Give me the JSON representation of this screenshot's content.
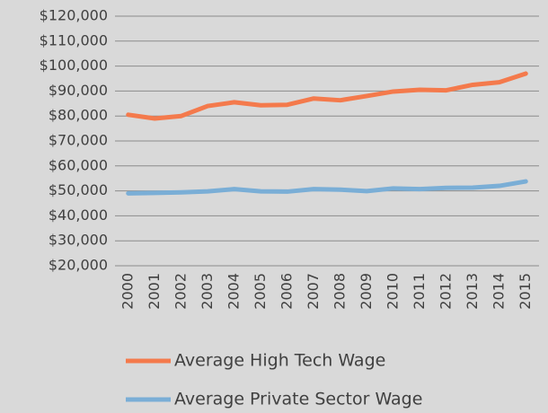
{
  "chart_data": {
    "type": "line",
    "categories": [
      "2000",
      "2001",
      "2002",
      "2003",
      "2004",
      "2005",
      "2006",
      "2007",
      "2008",
      "2009",
      "2010",
      "2011",
      "2012",
      "2013",
      "2014",
      "2015"
    ],
    "series": [
      {
        "name": "Average High Tech Wage",
        "color": "#f47a4c",
        "values": [
          80500,
          79000,
          80000,
          84000,
          85500,
          84300,
          84500,
          87000,
          86300,
          88000,
          89800,
          90500,
          90300,
          92500,
          93500,
          97000
        ]
      },
      {
        "name": "Average Private Sector Wage",
        "color": "#7aaed6",
        "values": [
          49000,
          49200,
          49400,
          49800,
          50700,
          49800,
          49700,
          50700,
          50500,
          49900,
          51000,
          50700,
          51200,
          51300,
          52000,
          53800
        ]
      }
    ],
    "ylim": [
      20000,
      120000
    ],
    "yticks": [
      {
        "value": 20000,
        "label": "$20,000"
      },
      {
        "value": 30000,
        "label": "$30,000"
      },
      {
        "value": 40000,
        "label": "$40,000"
      },
      {
        "value": 50000,
        "label": "$50,000"
      },
      {
        "value": 60000,
        "label": "$60,000"
      },
      {
        "value": 70000,
        "label": "$70,000"
      },
      {
        "value": 80000,
        "label": "$80,000"
      },
      {
        "value": 90000,
        "label": "$90,000"
      },
      {
        "value": 100000,
        "label": "$100,000"
      },
      {
        "value": 110000,
        "label": "$110,000"
      },
      {
        "value": 120000,
        "label": "$120,000"
      }
    ],
    "grid": true
  }
}
